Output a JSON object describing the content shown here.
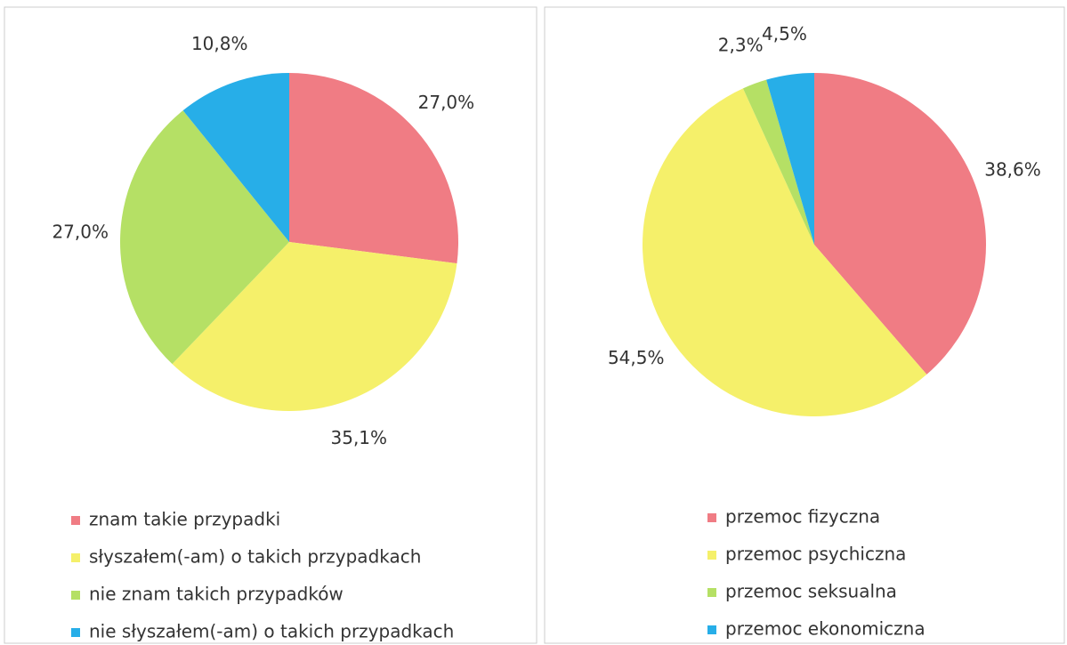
{
  "chart_data": [
    {
      "type": "pie",
      "categories": [
        "znam takie przypadki",
        "słyszałem(-am) o takich przypadkach",
        "nie znam takich przypadków",
        "nie słyszałem(-am) o takich przypadkach"
      ],
      "values": [
        27.0,
        35.1,
        27.0,
        10.8
      ],
      "value_labels": [
        "27,0%",
        "35,1%",
        "27,0%",
        "10,8%"
      ],
      "colors": [
        "#f07c84",
        "#f5f06a",
        "#b5e065",
        "#27aee8"
      ]
    },
    {
      "type": "pie",
      "categories": [
        "przemoc fizyczna",
        "przemoc psychiczna",
        "przemoc seksualna",
        "przemoc ekonomiczna"
      ],
      "values": [
        38.6,
        54.5,
        2.3,
        4.5
      ],
      "value_labels": [
        "38,6%",
        "54,5%",
        "2,3%",
        "4,5%"
      ],
      "colors": [
        "#f07c84",
        "#f5f06a",
        "#b5e065",
        "#27aee8"
      ]
    }
  ]
}
